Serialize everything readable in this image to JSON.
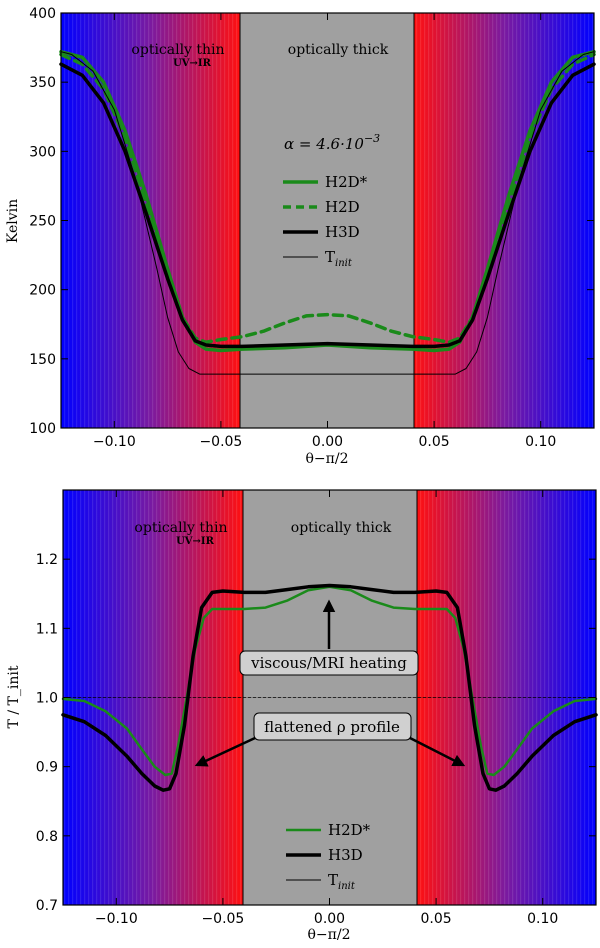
{
  "chart_data": [
    {
      "type": "line",
      "panel": "top",
      "ylabel": "Kelvin",
      "xlabel": "θ−π/2",
      "xlim": [
        -0.125,
        0.125
      ],
      "ylim": [
        100,
        400
      ],
      "xticks": [
        -0.1,
        -0.05,
        0.0,
        0.05,
        0.1
      ],
      "xtick_labels": [
        "−0.10",
        "−0.05",
        "0.00",
        "0.05",
        "0.10"
      ],
      "yticks": [
        100,
        150,
        200,
        250,
        300,
        350,
        400
      ],
      "ytick_labels": [
        "100",
        "150",
        "200",
        "250",
        "300",
        "350",
        "400"
      ],
      "optically_thick_range": [
        -0.04,
        0.04
      ],
      "region_labels": {
        "thin": "optically thin",
        "thin_sub": "UV→IR",
        "thick": "optically thick"
      },
      "annotation_alpha": "α = 4.6·10",
      "annotation_alpha_exp": "−3",
      "series": [
        {
          "name": "H2D*",
          "color": "#1a8a1a",
          "style": "solid",
          "width": 3.5,
          "x": [
            -0.125,
            -0.115,
            -0.105,
            -0.095,
            -0.085,
            -0.075,
            -0.068,
            -0.062,
            -0.057,
            -0.05,
            -0.04,
            -0.02,
            0.0,
            0.02,
            0.04,
            0.05,
            0.057,
            0.062,
            0.068,
            0.075,
            0.085,
            0.095,
            0.105,
            0.115,
            0.125
          ],
          "y": [
            372,
            368,
            350,
            315,
            268,
            215,
            180,
            162,
            157,
            156,
            157,
            158,
            160,
            158,
            157,
            156,
            157,
            162,
            180,
            215,
            268,
            315,
            350,
            368,
            372
          ]
        },
        {
          "name": "H2D",
          "color": "#1a8a1a",
          "style": "dashed",
          "width": 3.5,
          "x": [
            -0.125,
            -0.115,
            -0.105,
            -0.095,
            -0.085,
            -0.075,
            -0.068,
            -0.062,
            -0.057,
            -0.05,
            -0.04,
            -0.03,
            -0.02,
            -0.01,
            0.0,
            0.01,
            0.02,
            0.03,
            0.04,
            0.05,
            0.057,
            0.062,
            0.068,
            0.075,
            0.085,
            0.095,
            0.105,
            0.115,
            0.125
          ],
          "y": [
            370,
            363,
            345,
            310,
            262,
            212,
            180,
            165,
            162,
            164,
            166,
            170,
            176,
            181,
            182,
            181,
            176,
            170,
            166,
            164,
            162,
            165,
            180,
            212,
            262,
            310,
            345,
            363,
            370
          ]
        },
        {
          "name": "H3D",
          "color": "#000000",
          "style": "solid",
          "width": 3.5,
          "x": [
            -0.125,
            -0.115,
            -0.105,
            -0.095,
            -0.085,
            -0.075,
            -0.068,
            -0.062,
            -0.057,
            -0.05,
            -0.04,
            -0.02,
            0.0,
            0.02,
            0.04,
            0.05,
            0.057,
            0.062,
            0.068,
            0.075,
            0.085,
            0.095,
            0.105,
            0.115,
            0.125
          ],
          "y": [
            363,
            355,
            335,
            300,
            255,
            208,
            178,
            163,
            160,
            159,
            159,
            160,
            161,
            160,
            159,
            159,
            160,
            163,
            178,
            208,
            255,
            300,
            335,
            355,
            363
          ]
        },
        {
          "name": "T",
          "name_sub": "init",
          "color": "#000000",
          "style": "solid",
          "width": 1,
          "x": [
            -0.125,
            -0.12,
            -0.11,
            -0.1,
            -0.09,
            -0.08,
            -0.075,
            -0.07,
            -0.065,
            -0.06,
            -0.04,
            0.0,
            0.04,
            0.06,
            0.065,
            0.07,
            0.075,
            0.08,
            0.09,
            0.1,
            0.11,
            0.12,
            0.125
          ],
          "y": [
            372,
            370,
            358,
            330,
            280,
            215,
            180,
            155,
            143,
            139,
            139,
            139,
            139,
            139,
            143,
            155,
            180,
            215,
            280,
            330,
            358,
            370,
            372
          ]
        }
      ]
    },
    {
      "type": "line",
      "panel": "bottom",
      "ylabel": "T / T_init",
      "xlabel": "θ−π/2",
      "xlim": [
        -0.125,
        0.125
      ],
      "ylim": [
        0.7,
        1.3
      ],
      "xticks": [
        -0.1,
        -0.05,
        0.0,
        0.05,
        0.1
      ],
      "xtick_labels": [
        "−0.10",
        "−0.05",
        "0.00",
        "0.05",
        "0.10"
      ],
      "yticks": [
        0.7,
        0.8,
        0.9,
        1.0,
        1.1,
        1.2
      ],
      "ytick_labels": [
        "0.7",
        "0.8",
        "0.9",
        "1.0",
        "1.1",
        "1.2"
      ],
      "optically_thick_range": [
        -0.04,
        0.04
      ],
      "region_labels": {
        "thin": "optically thin",
        "thin_sub": "UV→IR",
        "thick": "optically thick"
      },
      "annotations": [
        {
          "text": "viscous/MRI heating",
          "box_center": [
            0.0,
            1.049
          ],
          "arrow_to": [
            0.0,
            1.15
          ]
        },
        {
          "text": "flattened ρ profile",
          "box_center": [
            0.0,
            0.96
          ],
          "arrows_to": [
            [
              -0.062,
              0.895
            ],
            [
              0.062,
              0.895
            ]
          ]
        }
      ],
      "series": [
        {
          "name": "H2D*",
          "color": "#1a8a1a",
          "style": "solid",
          "width": 2.5,
          "x": [
            -0.125,
            -0.115,
            -0.105,
            -0.095,
            -0.088,
            -0.082,
            -0.077,
            -0.074,
            -0.071,
            -0.067,
            -0.063,
            -0.059,
            -0.055,
            -0.05,
            -0.04,
            -0.03,
            -0.02,
            -0.01,
            0.0,
            0.01,
            0.02,
            0.03,
            0.04,
            0.05,
            0.055,
            0.059,
            0.063,
            0.067,
            0.071,
            0.074,
            0.077,
            0.082,
            0.088,
            0.095,
            0.105,
            0.115,
            0.125
          ],
          "y": [
            0.998,
            0.995,
            0.98,
            0.955,
            0.925,
            0.9,
            0.888,
            0.89,
            0.93,
            1.0,
            1.07,
            1.115,
            1.128,
            1.128,
            1.128,
            1.13,
            1.14,
            1.155,
            1.16,
            1.155,
            1.14,
            1.13,
            1.128,
            1.128,
            1.128,
            1.115,
            1.07,
            1.0,
            0.93,
            0.89,
            0.888,
            0.9,
            0.925,
            0.955,
            0.98,
            0.995,
            0.998
          ]
        },
        {
          "name": "H3D",
          "color": "#000000",
          "style": "solid",
          "width": 3.5,
          "x": [
            -0.125,
            -0.115,
            -0.105,
            -0.095,
            -0.088,
            -0.082,
            -0.078,
            -0.075,
            -0.072,
            -0.068,
            -0.064,
            -0.06,
            -0.055,
            -0.05,
            -0.04,
            -0.03,
            -0.02,
            -0.01,
            0.0,
            0.01,
            0.02,
            0.03,
            0.04,
            0.05,
            0.055,
            0.06,
            0.064,
            0.068,
            0.072,
            0.075,
            0.078,
            0.082,
            0.088,
            0.095,
            0.105,
            0.115,
            0.125
          ],
          "y": [
            0.975,
            0.965,
            0.945,
            0.915,
            0.89,
            0.872,
            0.866,
            0.868,
            0.89,
            0.96,
            1.06,
            1.13,
            1.152,
            1.154,
            1.152,
            1.152,
            1.156,
            1.16,
            1.162,
            1.16,
            1.156,
            1.152,
            1.152,
            1.154,
            1.152,
            1.13,
            1.06,
            0.96,
            0.89,
            0.868,
            0.866,
            0.872,
            0.89,
            0.915,
            0.945,
            0.965,
            0.975
          ]
        },
        {
          "name": "T",
          "name_sub": "init",
          "color": "#000000",
          "style": "solid",
          "width": 0.8,
          "x": [
            -0.125,
            0.125
          ],
          "y": [
            1.0,
            1.0
          ]
        }
      ]
    }
  ]
}
